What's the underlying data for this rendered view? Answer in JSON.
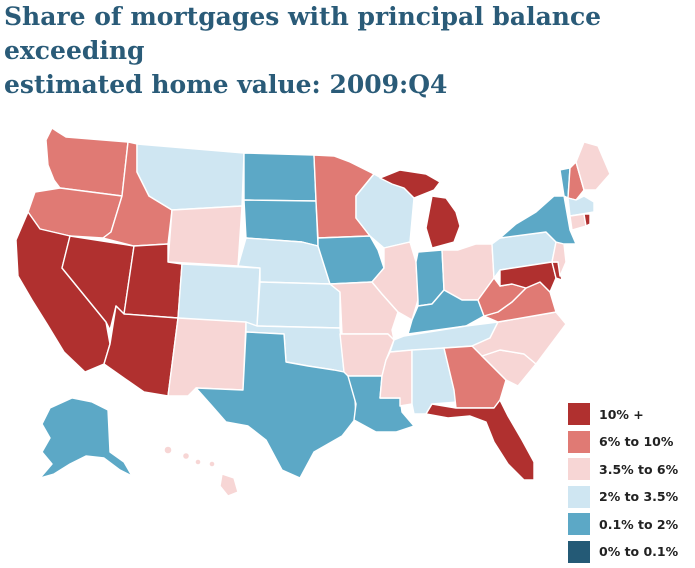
{
  "title_lines": [
    "Share of mortgages with principal balance exceeding",
    "estimated home value: 2009:Q4"
  ],
  "legend": [
    {
      "label": "10% +",
      "color": "#b0302f",
      "class": "c1"
    },
    {
      "label": "6% to 10%",
      "color": "#e07a74",
      "class": "c2"
    },
    {
      "label": "3.5% to 6%",
      "color": "#f7d6d5",
      "class": "c3"
    },
    {
      "label": "2% to 3.5%",
      "color": "#cfe6f2",
      "class": "c4"
    },
    {
      "label": "0.1% to 2%",
      "color": "#5ca8c6",
      "class": "c5"
    },
    {
      "label": "0% to 0.1%",
      "color": "#245a76",
      "class": "c6"
    }
  ],
  "states": {
    "c1": [
      "CA",
      "NV",
      "UT",
      "AZ",
      "FL",
      "MI",
      "MD",
      "DE",
      "RI"
    ],
    "c2": [
      "WA",
      "OR",
      "ID",
      "MN",
      "GA",
      "VA",
      "WV",
      "NH"
    ],
    "c3": [
      "WY",
      "NM",
      "MO",
      "IL",
      "OH",
      "AR",
      "MS",
      "SC",
      "NC",
      "ME",
      "NJ",
      "HI",
      "CT"
    ],
    "c4": [
      "MT",
      "CO",
      "NE",
      "KS",
      "OK",
      "WI",
      "TN",
      "AL",
      "PA",
      "MA"
    ],
    "c5": [
      "ND",
      "SD",
      "IA",
      "TX",
      "LA",
      "IN",
      "KY",
      "NY",
      "VT",
      "AK"
    ],
    "c6": []
  }
}
